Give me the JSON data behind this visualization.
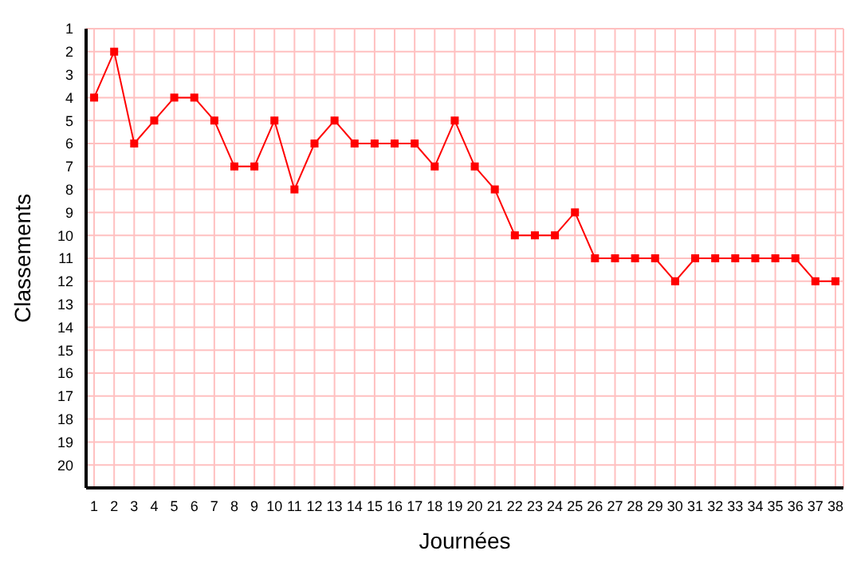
{
  "chart_data": {
    "type": "line",
    "xlabel": "Journées",
    "ylabel": "Classements",
    "x": [
      1,
      2,
      3,
      4,
      5,
      6,
      7,
      8,
      9,
      10,
      11,
      12,
      13,
      14,
      15,
      16,
      17,
      18,
      19,
      20,
      21,
      22,
      23,
      24,
      25,
      26,
      27,
      28,
      29,
      30,
      31,
      32,
      33,
      34,
      35,
      36,
      37,
      38
    ],
    "series": [
      {
        "color": "#ff0000",
        "values": [
          4,
          2,
          6,
          5,
          4,
          4,
          5,
          7,
          7,
          5,
          8,
          6,
          5,
          6,
          6,
          6,
          6,
          7,
          5,
          7,
          8,
          10,
          10,
          10,
          9,
          11,
          11,
          11,
          11,
          12,
          11,
          11,
          11,
          11,
          11,
          11,
          12,
          12
        ]
      }
    ],
    "xlim": [
      0.6,
      38.4
    ],
    "xticks": [
      1,
      2,
      3,
      4,
      5,
      6,
      7,
      8,
      9,
      10,
      11,
      12,
      13,
      14,
      15,
      16,
      17,
      18,
      19,
      20,
      21,
      22,
      23,
      24,
      25,
      26,
      27,
      28,
      29,
      30,
      31,
      32,
      33,
      34,
      35,
      36,
      37,
      38
    ],
    "ylim": [
      21,
      1
    ],
    "yticks": [
      1,
      2,
      3,
      4,
      5,
      6,
      7,
      8,
      9,
      10,
      11,
      12,
      13,
      14,
      15,
      16,
      17,
      18,
      19,
      20
    ],
    "grid": true,
    "marker": "square",
    "line_style": "solid"
  }
}
